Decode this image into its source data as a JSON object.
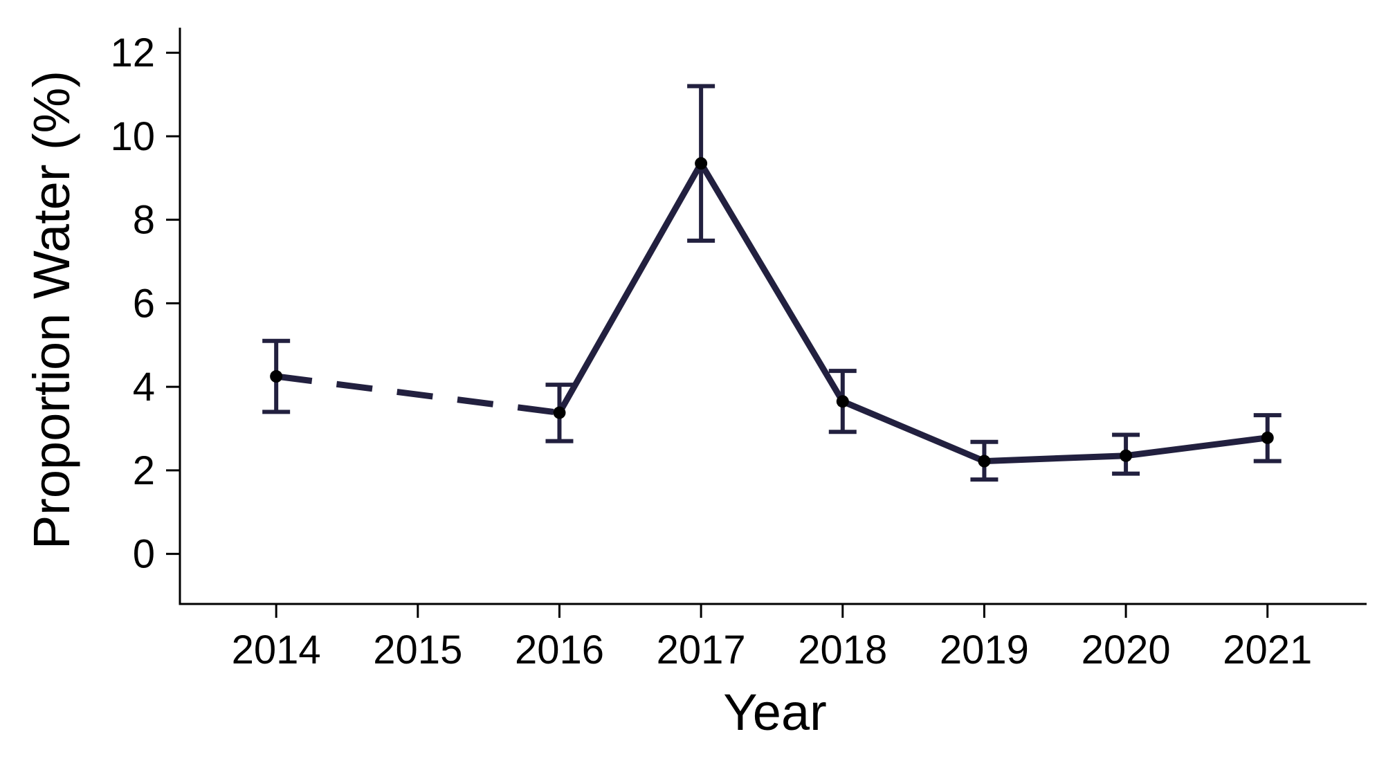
{
  "chart_data": {
    "type": "line",
    "xlabel": "Year",
    "ylabel": "Proportion Water (%)",
    "x": [
      2014,
      2016,
      2017,
      2018,
      2019,
      2020,
      2021
    ],
    "y": [
      4.25,
      3.38,
      9.35,
      3.65,
      2.22,
      2.35,
      2.78
    ],
    "error_low": [
      3.4,
      2.7,
      7.5,
      2.92,
      1.78,
      1.92,
      2.22
    ],
    "error_high": [
      5.1,
      4.05,
      11.2,
      4.38,
      2.68,
      2.85,
      3.32
    ],
    "segments": [
      {
        "from": 2014,
        "to": 2016,
        "style": "dashed"
      },
      {
        "from": 2016,
        "to": 2021,
        "style": "solid"
      }
    ],
    "xticks": [
      "2014",
      "2015",
      "2016",
      "2017",
      "2018",
      "2019",
      "2020",
      "2021"
    ],
    "yticks": [
      "0",
      "2",
      "4",
      "6",
      "8",
      "10",
      "12"
    ],
    "xlim": [
      2013.32,
      2021.7
    ],
    "ylim": [
      -1.2,
      12.6
    ],
    "grid": false,
    "legend": "none",
    "colors": {
      "line": "#22203f",
      "error_bar": "#22203f",
      "marker": "#000000",
      "axis": "#000000"
    }
  }
}
